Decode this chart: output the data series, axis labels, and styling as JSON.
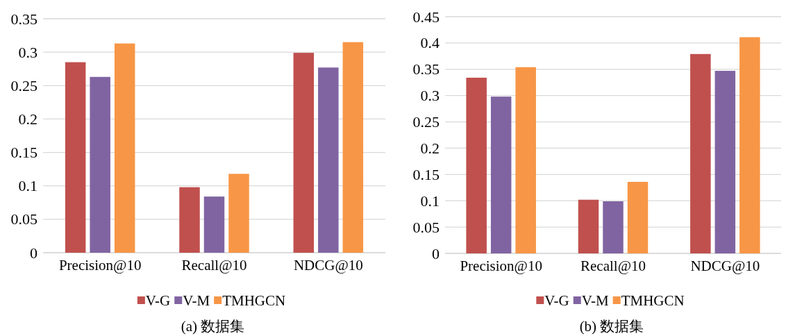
{
  "chart_data": [
    {
      "type": "bar",
      "title": "(a) 数据集",
      "categories": [
        "Precision@10",
        "Recall@10",
        "NDCG@10"
      ],
      "series": [
        {
          "name": "V-G",
          "color": "#c0504d",
          "values": [
            0.285,
            0.098,
            0.299
          ]
        },
        {
          "name": "V-M",
          "color": "#8064a2",
          "values": [
            0.263,
            0.084,
            0.277
          ]
        },
        {
          "name": "TMHGCN",
          "color": "#f79646",
          "values": [
            0.313,
            0.118,
            0.315
          ]
        }
      ],
      "ylim": [
        0,
        0.35
      ],
      "yticks": [
        0,
        0.05,
        0.1,
        0.15,
        0.2,
        0.25,
        0.3,
        0.35
      ],
      "grid": "y",
      "legend": "bottom"
    },
    {
      "type": "bar",
      "title": "(b) 数据集",
      "categories": [
        "Precision@10",
        "Recall@10",
        "NDCG@10"
      ],
      "series": [
        {
          "name": "V-G",
          "color": "#c0504d",
          "values": [
            0.334,
            0.102,
            0.379
          ]
        },
        {
          "name": "V-M",
          "color": "#8064a2",
          "values": [
            0.298,
            0.099,
            0.347
          ]
        },
        {
          "name": "TMHGCN",
          "color": "#f79646",
          "values": [
            0.354,
            0.136,
            0.411
          ]
        }
      ],
      "ylim": [
        0,
        0.45
      ],
      "yticks": [
        0,
        0.05,
        0.1,
        0.15,
        0.2,
        0.25,
        0.3,
        0.35,
        0.4,
        0.45
      ],
      "grid": "y",
      "legend": "bottom"
    }
  ]
}
